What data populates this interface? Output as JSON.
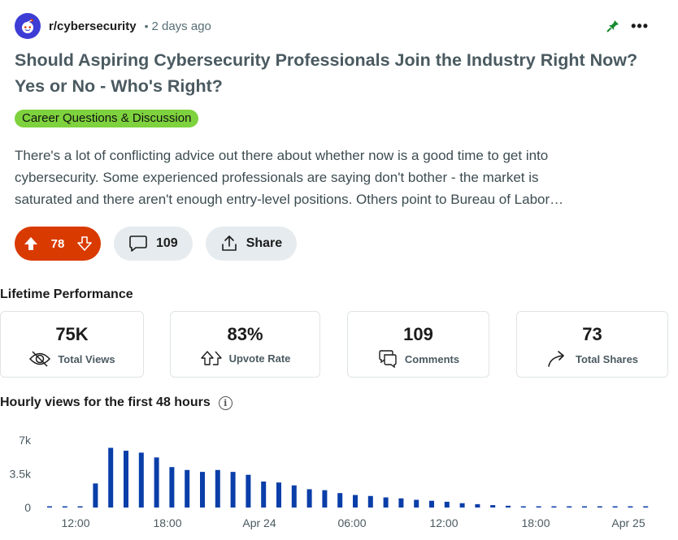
{
  "post": {
    "subreddit": "r/cybersecurity",
    "separator": "•",
    "age": "2 days ago",
    "title": "Should Aspiring Cybersecurity Professionals Join the Industry Right Now? Yes or No - Who's Right?",
    "flair": "Career Questions & Discussion",
    "flair_color": "#7ed23d",
    "body_lines": [
      "There's a lot of conflicting advice out there about whether now is a good time to get into",
      "cybersecurity. Some experienced professionals are saying don't bother - the market is",
      "saturated and there aren't enough entry-level positions. Others point to Bureau of Labor…"
    ]
  },
  "actions": {
    "upvotes": "78",
    "comments": "109",
    "share_label": "Share",
    "vote_color": "#d93a00"
  },
  "performance": {
    "title": "Lifetime Performance",
    "stats": [
      {
        "value": "75K",
        "label": "Total Views",
        "icon": "eye-icon"
      },
      {
        "value": "83%",
        "label": "Upvote Rate",
        "icon": "upvote-icon"
      },
      {
        "value": "109",
        "label": "Comments",
        "icon": "comment-icon"
      },
      {
        "value": "73",
        "label": "Total Shares",
        "icon": "share-arrow-icon"
      }
    ]
  },
  "chart_title": "Hourly views for the first 48 hours",
  "chart_data": {
    "type": "bar",
    "color": "#0a3ea8",
    "y_ticks": [
      "7k",
      "3.5k",
      "0"
    ],
    "y_tick_values": [
      7000,
      3500,
      0
    ],
    "ylim": [
      0,
      7000
    ],
    "x_tick_labels": [
      "12:00",
      "18:00",
      "Apr 24",
      "06:00",
      "12:00",
      "18:00",
      "Apr 25"
    ],
    "values": [
      0,
      0,
      0,
      2500,
      6200,
      5900,
      5700,
      5200,
      4200,
      3900,
      3700,
      3900,
      3700,
      3400,
      2700,
      2600,
      2300,
      1900,
      1800,
      1500,
      1300,
      1200,
      1050,
      950,
      800,
      700,
      600,
      450,
      350,
      250,
      180,
      120,
      80,
      60,
      40,
      30,
      20,
      15,
      10,
      8
    ]
  }
}
